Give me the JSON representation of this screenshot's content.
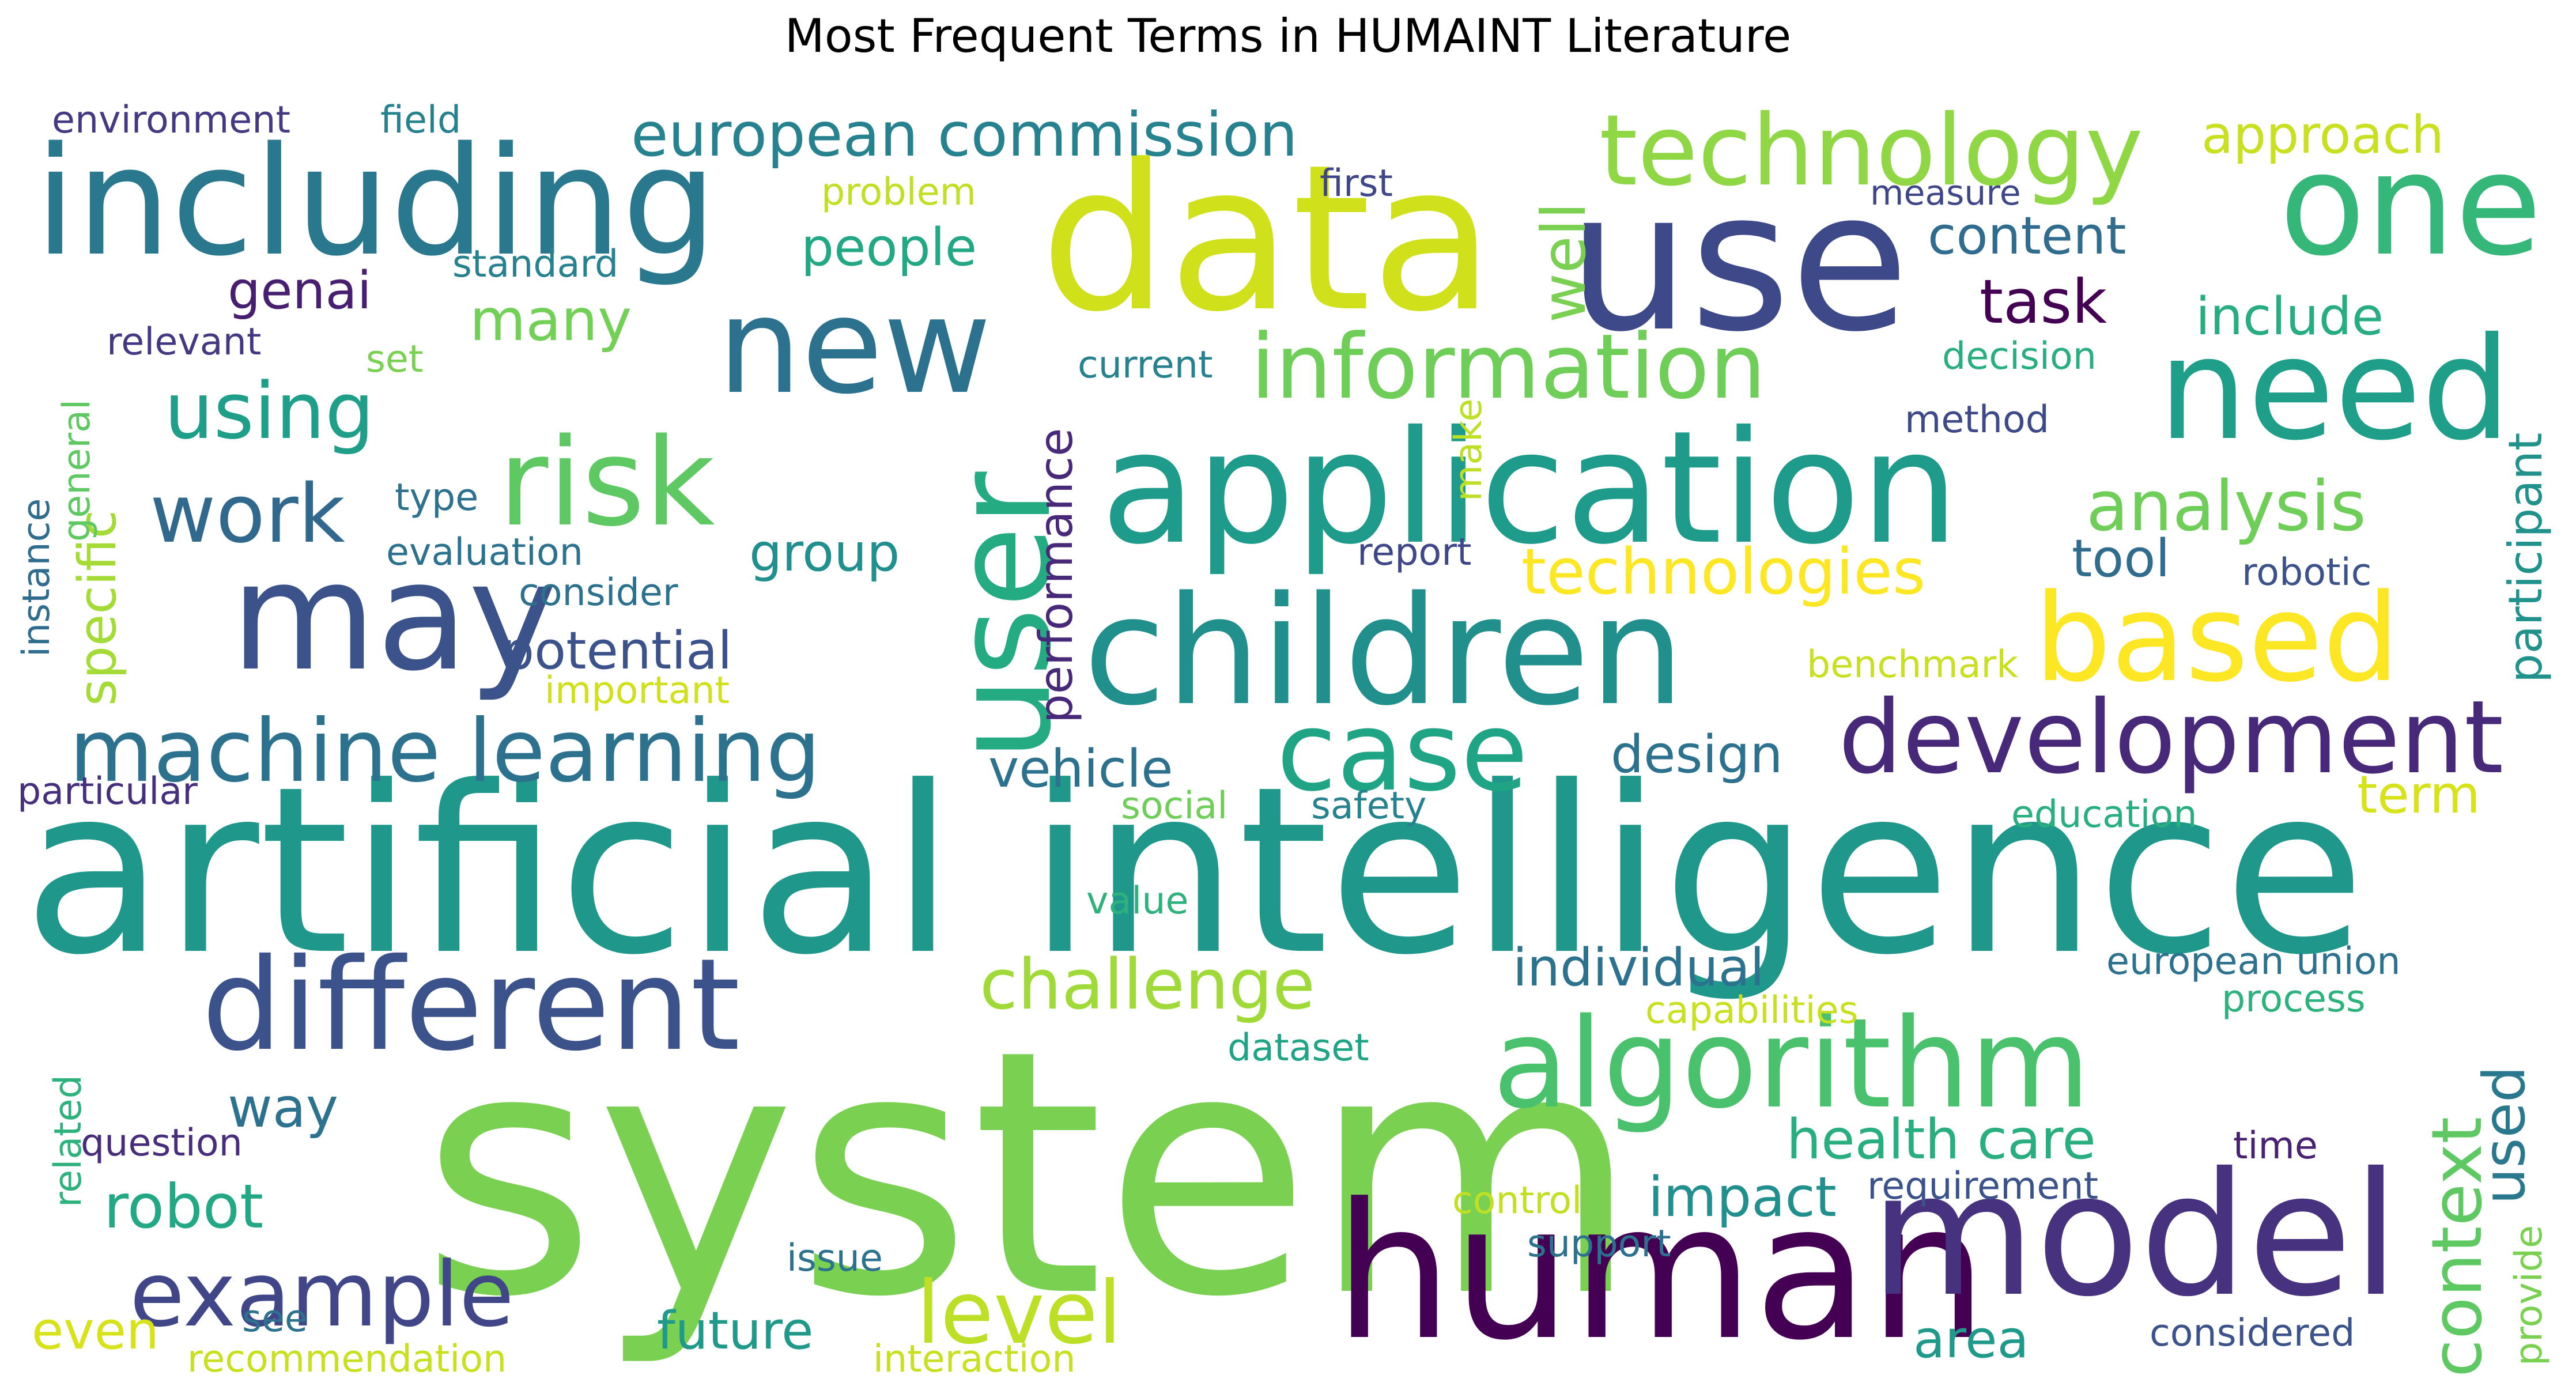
{
  "chart_data": {
    "type": "wordcloud",
    "title": "Most Frequent Terms in HUMAINT Literature",
    "colormap": "viridis",
    "background": "#ffffff",
    "words": [
      {
        "text": "system",
        "weight": 1.0,
        "color": "#7ad151"
      },
      {
        "text": "artificial intelligence",
        "weight": 0.69,
        "color": "#1f988b"
      },
      {
        "text": "data",
        "weight": 0.6,
        "color": "#d0e11c"
      },
      {
        "text": "use",
        "weight": 0.58,
        "color": "#3e4989"
      },
      {
        "text": "human",
        "weight": 0.56,
        "color": "#440154"
      },
      {
        "text": "model",
        "weight": 0.52,
        "color": "#46327e"
      },
      {
        "text": "application",
        "weight": 0.47,
        "color": "#1e9b8a"
      },
      {
        "text": "children",
        "weight": 0.45,
        "color": "#21908d"
      },
      {
        "text": "may",
        "weight": 0.45,
        "color": "#3b528b"
      },
      {
        "text": "including",
        "weight": 0.45,
        "color": "#2a788e"
      },
      {
        "text": "need",
        "weight": 0.42,
        "color": "#1f9e89"
      },
      {
        "text": "one",
        "weight": 0.42,
        "color": "#35b779"
      },
      {
        "text": "user",
        "weight": 0.4,
        "color": "#25ab82"
      },
      {
        "text": "new",
        "weight": 0.4,
        "color": "#2c728e"
      },
      {
        "text": "different",
        "weight": 0.38,
        "color": "#3b528b"
      },
      {
        "text": "algorithm",
        "weight": 0.37,
        "color": "#4ac16d"
      },
      {
        "text": "risk",
        "weight": 0.36,
        "color": "#5ec962"
      },
      {
        "text": "based",
        "weight": 0.36,
        "color": "#fde725"
      },
      {
        "text": "case",
        "weight": 0.33,
        "color": "#20a486"
      },
      {
        "text": "development",
        "weight": 0.3,
        "color": "#482878"
      },
      {
        "text": "technology",
        "weight": 0.29,
        "color": "#8fd744"
      },
      {
        "text": "information",
        "weight": 0.27,
        "color": "#6ece58"
      },
      {
        "text": "example",
        "weight": 0.27,
        "color": "#404688"
      },
      {
        "text": "level",
        "weight": 0.26,
        "color": "#bddf26"
      },
      {
        "text": "machine learning",
        "weight": 0.26,
        "color": "#2c728e"
      },
      {
        "text": "work",
        "weight": 0.24,
        "color": "#31688e"
      },
      {
        "text": "using",
        "weight": 0.23,
        "color": "#1f9e89"
      },
      {
        "text": "analysis",
        "weight": 0.21,
        "color": "#6ece58"
      },
      {
        "text": "context",
        "weight": 0.21,
        "color": "#5ec962"
      },
      {
        "text": "challenge",
        "weight": 0.21,
        "color": "#a0da39"
      },
      {
        "text": "technologies",
        "weight": 0.19,
        "color": "#fde725"
      },
      {
        "text": "european commission",
        "weight": 0.18,
        "color": "#26828e"
      },
      {
        "text": "task",
        "weight": 0.18,
        "color": "#440154"
      },
      {
        "text": "robot",
        "weight": 0.18,
        "color": "#22a884"
      },
      {
        "text": "well",
        "weight": 0.18,
        "color": "#7ad151"
      },
      {
        "text": "many",
        "weight": 0.17,
        "color": "#73d056"
      },
      {
        "text": "used",
        "weight": 0.17,
        "color": "#2a788e"
      },
      {
        "text": "impact",
        "weight": 0.16,
        "color": "#218f8d"
      },
      {
        "text": "health care",
        "weight": 0.16,
        "color": "#29af7f"
      },
      {
        "text": "way",
        "weight": 0.16,
        "color": "#2c728e"
      },
      {
        "text": "individual",
        "weight": 0.15,
        "color": "#2c728e"
      },
      {
        "text": "future",
        "weight": 0.15,
        "color": "#1f9a8a"
      },
      {
        "text": "potential",
        "weight": 0.15,
        "color": "#3b528b"
      },
      {
        "text": "design",
        "weight": 0.14,
        "color": "#2c728e"
      },
      {
        "text": "group",
        "weight": 0.14,
        "color": "#218f8d"
      },
      {
        "text": "specific",
        "weight": 0.14,
        "color": "#a5db36"
      },
      {
        "text": "genai",
        "weight": 0.14,
        "color": "#481f70"
      },
      {
        "text": "people",
        "weight": 0.14,
        "color": "#22a884"
      },
      {
        "text": "performance",
        "weight": 0.14,
        "color": "#482878"
      },
      {
        "text": "participant",
        "weight": 0.14,
        "color": "#21918c"
      },
      {
        "text": "include",
        "weight": 0.14,
        "color": "#27ad81"
      },
      {
        "text": "content",
        "weight": 0.14,
        "color": "#2f6c8e"
      },
      {
        "text": "approach",
        "weight": 0.14,
        "color": "#c8e020"
      },
      {
        "text": "vehicle",
        "weight": 0.13,
        "color": "#2c728e"
      },
      {
        "text": "area",
        "weight": 0.13,
        "color": "#1f9a8a"
      },
      {
        "text": "term",
        "weight": 0.13,
        "color": "#d8e219"
      },
      {
        "text": "tool",
        "weight": 0.13,
        "color": "#2f6c8e"
      },
      {
        "text": "even",
        "weight": 0.12,
        "color": "#d8e219"
      },
      {
        "text": "environment",
        "weight": 0.09,
        "color": "#443983"
      },
      {
        "text": "field",
        "weight": 0.09,
        "color": "#26828e"
      },
      {
        "text": "problem",
        "weight": 0.09,
        "color": "#c2df23"
      },
      {
        "text": "first",
        "weight": 0.09,
        "color": "#3f4788"
      },
      {
        "text": "measure",
        "weight": 0.09,
        "color": "#3f4788"
      },
      {
        "text": "standard",
        "weight": 0.09,
        "color": "#26828e"
      },
      {
        "text": "relevant",
        "weight": 0.09,
        "color": "#453882"
      },
      {
        "text": "set",
        "weight": 0.09,
        "color": "#7ad151"
      },
      {
        "text": "current",
        "weight": 0.09,
        "color": "#26828e"
      },
      {
        "text": "decision",
        "weight": 0.09,
        "color": "#29af7f"
      },
      {
        "text": "general",
        "weight": 0.09,
        "color": "#5ec962"
      },
      {
        "text": "method",
        "weight": 0.09,
        "color": "#3e4989"
      },
      {
        "text": "type",
        "weight": 0.09,
        "color": "#2c728e"
      },
      {
        "text": "make",
        "weight": 0.09,
        "color": "#bddf26"
      },
      {
        "text": "instance",
        "weight": 0.09,
        "color": "#2f6c8e"
      },
      {
        "text": "evaluation",
        "weight": 0.09,
        "color": "#2c728e"
      },
      {
        "text": "report",
        "weight": 0.09,
        "color": "#3f4788"
      },
      {
        "text": "consider",
        "weight": 0.09,
        "color": "#2c728e"
      },
      {
        "text": "robotic",
        "weight": 0.09,
        "color": "#3b528b"
      },
      {
        "text": "important",
        "weight": 0.09,
        "color": "#d0e11c"
      },
      {
        "text": "benchmark",
        "weight": 0.09,
        "color": "#c8e020"
      },
      {
        "text": "particular",
        "weight": 0.09,
        "color": "#46307e"
      },
      {
        "text": "social",
        "weight": 0.09,
        "color": "#6ece58"
      },
      {
        "text": "safety",
        "weight": 0.09,
        "color": "#26828e"
      },
      {
        "text": "education",
        "weight": 0.09,
        "color": "#29af7f"
      },
      {
        "text": "value",
        "weight": 0.09,
        "color": "#2db27d"
      },
      {
        "text": "european union",
        "weight": 0.09,
        "color": "#2c728e"
      },
      {
        "text": "capabilities",
        "weight": 0.09,
        "color": "#c8e020"
      },
      {
        "text": "process",
        "weight": 0.09,
        "color": "#2db27d"
      },
      {
        "text": "dataset",
        "weight": 0.09,
        "color": "#20a486"
      },
      {
        "text": "related",
        "weight": 0.09,
        "color": "#2db27d"
      },
      {
        "text": "question",
        "weight": 0.09,
        "color": "#472d7b"
      },
      {
        "text": "control",
        "weight": 0.09,
        "color": "#c2df23"
      },
      {
        "text": "requirement",
        "weight": 0.09,
        "color": "#3b528b"
      },
      {
        "text": "time",
        "weight": 0.09,
        "color": "#482173"
      },
      {
        "text": "support",
        "weight": 0.09,
        "color": "#2c728e"
      },
      {
        "text": "provide",
        "weight": 0.09,
        "color": "#7ad151"
      },
      {
        "text": "issue",
        "weight": 0.09,
        "color": "#2c728e"
      },
      {
        "text": "see",
        "weight": 0.09,
        "color": "#2c728e"
      },
      {
        "text": "recommendation",
        "weight": 0.09,
        "color": "#c8e020"
      },
      {
        "text": "interaction",
        "weight": 0.09,
        "color": "#c8e020"
      },
      {
        "text": "considered",
        "weight": 0.09,
        "color": "#3b528b"
      }
    ]
  }
}
